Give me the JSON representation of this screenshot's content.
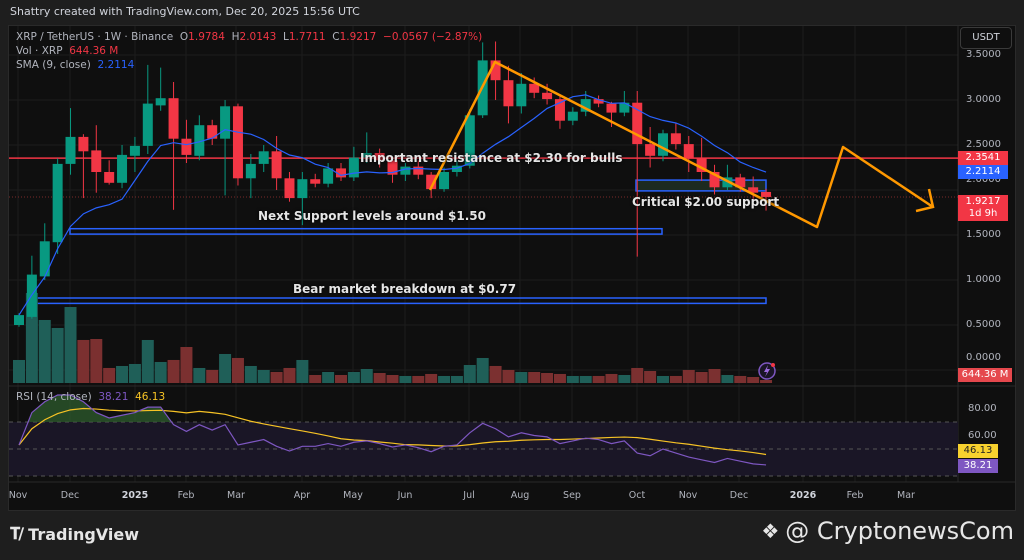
{
  "header": {
    "created_by": "Shattry created with TradingView.com, Dec 20, 2025 15:56 UTC"
  },
  "legend": {
    "symbol": "XRP / TetherUS · 1W · Binance",
    "open_label": "O",
    "open": "1.9784",
    "high_label": "H",
    "high": "2.0143",
    "low_label": "L",
    "low": "1.7711",
    "close_label": "C",
    "close": "1.9217",
    "change": "−0.0567 (−2.87%)",
    "vol_label": "Vol · XRP",
    "vol_value": "644.36 M",
    "sma_label": "SMA (9, close)",
    "sma_value": "2.2114",
    "rsi_label": "RSI (14, close)",
    "rsi_value": "38.21",
    "rsi_ma_value": "46.13"
  },
  "currency_button": "USDT",
  "price_axis": [
    "3.5000",
    "3.0000",
    "2.5000",
    "2.0000",
    "1.5000",
    "1.0000",
    "0.5000",
    "0.0000"
  ],
  "rsi_axis": [
    "80.00",
    "60.00"
  ],
  "badges": {
    "resistance": "2.3541",
    "sma": "2.2114",
    "last_price": "1.9217",
    "countdown": "1d 9h",
    "volume": "644.36 M",
    "rsi_ma": "46.13",
    "rsi": "38.21"
  },
  "time_axis": [
    {
      "label": "Nov",
      "bold": false
    },
    {
      "label": "Dec",
      "bold": false
    },
    {
      "label": "2025",
      "bold": true
    },
    {
      "label": "Feb",
      "bold": false
    },
    {
      "label": "Mar",
      "bold": false
    },
    {
      "label": "Apr",
      "bold": false
    },
    {
      "label": "May",
      "bold": false
    },
    {
      "label": "Jun",
      "bold": false
    },
    {
      "label": "Jul",
      "bold": false
    },
    {
      "label": "Aug",
      "bold": false
    },
    {
      "label": "Sep",
      "bold": false
    },
    {
      "label": "Oct",
      "bold": false
    },
    {
      "label": "Nov",
      "bold": false
    },
    {
      "label": "Dec",
      "bold": false
    },
    {
      "label": "2026",
      "bold": true
    },
    {
      "label": "Feb",
      "bold": false
    },
    {
      "label": "Mar",
      "bold": false
    }
  ],
  "annotations": {
    "resistance": "Important resistance at $2.30 for bulls",
    "next_support": "Next Support levels around $1.50",
    "bear_breakdown": "Bear market breakdown at $0.77",
    "critical_support": "Critical $2.00 support"
  },
  "footer": {
    "brand": "TradingView",
    "watermark": "@ CryptonewsCom"
  },
  "colors": {
    "up": "#089981",
    "down": "#f23645",
    "vol_up": "#1f5f58",
    "vol_down": "#7b3030",
    "sma": "#2962ff",
    "rsi": "#7e57c2",
    "rsi_ma": "#f7c325",
    "drawing": "#ff9800",
    "resistance": "#f23645",
    "zone": "#2962ff"
  },
  "chart_data": {
    "type": "candlestick",
    "symbol": "XRP / TetherUS",
    "interval": "1W",
    "ylim": [
      0,
      3.8
    ],
    "dates": [
      "2024-11-04",
      "2024-11-11",
      "2024-11-18",
      "2024-11-25",
      "2024-12-02",
      "2024-12-09",
      "2024-12-16",
      "2024-12-23",
      "2024-12-30",
      "2025-01-06",
      "2025-01-13",
      "2025-01-20",
      "2025-01-27",
      "2025-02-03",
      "2025-02-10",
      "2025-02-17",
      "2025-02-24",
      "2025-03-03",
      "2025-03-10",
      "2025-03-17",
      "2025-03-24",
      "2025-03-31",
      "2025-04-07",
      "2025-04-14",
      "2025-04-21",
      "2025-04-28",
      "2025-05-05",
      "2025-05-12",
      "2025-05-19",
      "2025-05-26",
      "2025-06-02",
      "2025-06-09",
      "2025-06-16",
      "2025-06-23",
      "2025-06-30",
      "2025-07-07",
      "2025-07-14",
      "2025-07-21",
      "2025-07-28",
      "2025-08-04",
      "2025-08-11",
      "2025-08-18",
      "2025-08-25",
      "2025-09-01",
      "2025-09-08",
      "2025-09-15",
      "2025-09-22",
      "2025-09-29",
      "2025-10-06",
      "2025-10-13",
      "2025-10-20",
      "2025-10-27",
      "2025-11-03",
      "2025-11-10",
      "2025-11-17",
      "2025-11-24",
      "2025-12-01",
      "2025-12-08",
      "2025-12-15"
    ],
    "ohlc": [
      [
        0.5,
        0.63,
        0.48,
        0.61
      ],
      [
        0.59,
        1.27,
        0.57,
        1.06
      ],
      [
        1.04,
        1.63,
        1.0,
        1.43
      ],
      [
        1.42,
        2.35,
        1.29,
        2.29
      ],
      [
        2.29,
        2.91,
        2.17,
        2.59
      ],
      [
        2.59,
        2.62,
        1.91,
        2.43
      ],
      [
        2.44,
        2.72,
        1.97,
        2.2
      ],
      [
        2.2,
        2.33,
        2.06,
        2.08
      ],
      [
        2.08,
        2.5,
        2.02,
        2.39
      ],
      [
        2.38,
        2.59,
        2.2,
        2.49
      ],
      [
        2.49,
        3.39,
        2.4,
        2.96
      ],
      [
        2.94,
        3.36,
        2.88,
        3.02
      ],
      [
        3.02,
        3.2,
        1.78,
        2.57
      ],
      [
        2.57,
        2.78,
        2.3,
        2.39
      ],
      [
        2.38,
        2.83,
        2.33,
        2.72
      ],
      [
        2.72,
        2.78,
        2.5,
        2.57
      ],
      [
        2.57,
        3.0,
        1.94,
        2.93
      ],
      [
        2.93,
        2.96,
        2.05,
        2.13
      ],
      [
        2.13,
        2.4,
        1.91,
        2.29
      ],
      [
        2.29,
        2.5,
        2.2,
        2.43
      ],
      [
        2.43,
        2.6,
        2.0,
        2.13
      ],
      [
        2.13,
        2.2,
        1.87,
        1.91
      ],
      [
        1.91,
        2.2,
        1.61,
        2.12
      ],
      [
        2.12,
        2.18,
        2.03,
        2.07
      ],
      [
        2.07,
        2.3,
        2.03,
        2.24
      ],
      [
        2.24,
        2.3,
        2.1,
        2.14
      ],
      [
        2.14,
        2.48,
        2.1,
        2.36
      ],
      [
        2.36,
        2.64,
        2.3,
        2.41
      ],
      [
        2.41,
        2.46,
        2.25,
        2.33
      ],
      [
        2.33,
        2.35,
        2.08,
        2.17
      ],
      [
        2.17,
        2.3,
        2.1,
        2.26
      ],
      [
        2.26,
        2.33,
        2.12,
        2.17
      ],
      [
        2.17,
        2.2,
        1.91,
        2.01
      ],
      [
        2.01,
        2.25,
        1.98,
        2.2
      ],
      [
        2.2,
        2.32,
        2.15,
        2.27
      ],
      [
        2.27,
        2.9,
        2.24,
        2.83
      ],
      [
        2.83,
        3.64,
        2.8,
        3.44
      ],
      [
        3.44,
        3.65,
        3.0,
        3.22
      ],
      [
        3.22,
        3.38,
        2.74,
        2.93
      ],
      [
        2.93,
        3.3,
        2.85,
        3.18
      ],
      [
        3.18,
        3.25,
        3.02,
        3.08
      ],
      [
        3.08,
        3.18,
        2.95,
        3.01
      ],
      [
        3.01,
        3.05,
        2.68,
        2.77
      ],
      [
        2.77,
        2.92,
        2.72,
        2.87
      ],
      [
        2.87,
        3.1,
        2.82,
        3.01
      ],
      [
        3.01,
        3.05,
        2.92,
        2.96
      ],
      [
        2.96,
        2.98,
        2.7,
        2.86
      ],
      [
        2.86,
        3.1,
        2.82,
        2.97
      ],
      [
        2.97,
        3.1,
        1.26,
        2.51
      ],
      [
        2.51,
        2.7,
        2.25,
        2.38
      ],
      [
        2.38,
        2.67,
        2.32,
        2.63
      ],
      [
        2.63,
        2.75,
        2.45,
        2.51
      ],
      [
        2.51,
        2.6,
        2.2,
        2.36
      ],
      [
        2.36,
        2.58,
        2.1,
        2.2
      ],
      [
        2.2,
        2.28,
        1.95,
        2.03
      ],
      [
        2.03,
        2.28,
        2.0,
        2.14
      ],
      [
        2.14,
        2.18,
        1.98,
        2.03
      ],
      [
        2.03,
        2.15,
        1.9,
        1.97
      ],
      [
        1.9784,
        2.0143,
        1.7711,
        1.9217
      ]
    ],
    "volume_millions": [
      4950,
      19350,
      13550,
      11830,
      16340,
      9250,
      9460,
      3230,
      3660,
      4090,
      9250,
      4520,
      4950,
      7740,
      3230,
      2800,
      6240,
      5380,
      3660,
      2800,
      2370,
      3230,
      4950,
      1720,
      2370,
      1720,
      2370,
      3010,
      2150,
      1720,
      1510,
      1510,
      1940,
      1510,
      1510,
      3870,
      5380,
      3660,
      2800,
      2370,
      2370,
      2150,
      1940,
      1510,
      1510,
      1510,
      1940,
      1720,
      3230,
      2580,
      1510,
      1510,
      2800,
      2370,
      3010,
      1720,
      1510,
      1290,
      644.36
    ],
    "rsi": [
      53,
      77,
      85,
      90,
      90,
      85,
      77,
      73,
      75,
      77,
      81,
      81,
      68,
      63,
      68,
      64,
      68,
      53,
      55,
      57,
      52,
      48.5,
      52,
      52,
      54,
      52,
      55,
      56,
      54,
      51.5,
      53,
      51,
      48,
      52,
      53,
      62,
      69,
      65,
      59,
      62,
      60,
      59,
      54,
      56,
      58,
      57,
      54,
      56,
      47,
      45,
      50,
      47,
      44,
      42,
      40,
      43,
      41,
      39,
      38.21
    ],
    "rsi_levels": [
      70,
      50,
      30
    ],
    "resistance_level": 2.3541,
    "zones": [
      {
        "label": "Critical $2.00 support",
        "low": 1.99,
        "high": 2.11
      },
      {
        "label": "Next Support levels around $1.50",
        "low": 1.51,
        "high": 1.57
      },
      {
        "label": "Bear market breakdown at $0.77",
        "low": 0.74,
        "high": 0.8
      }
    ]
  }
}
